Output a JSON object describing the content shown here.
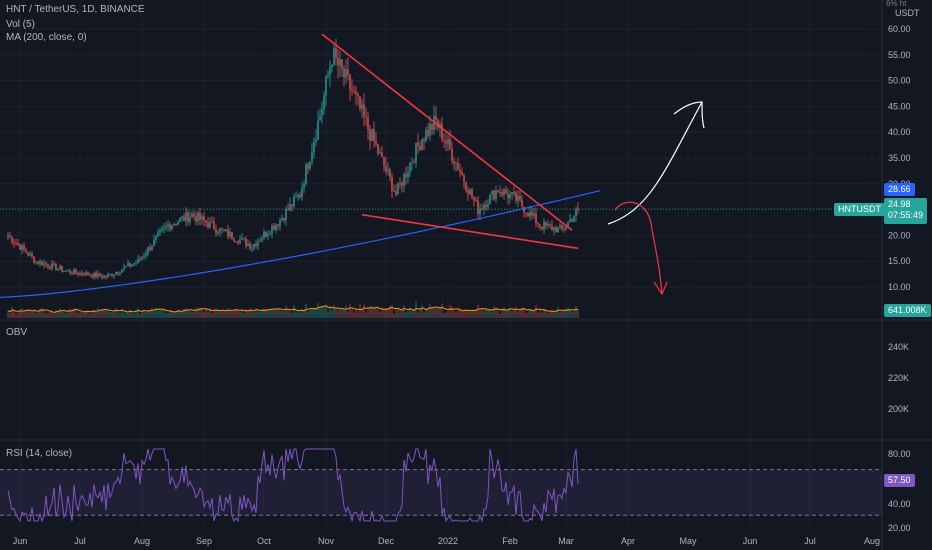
{
  "header": {
    "symbol_line": "HNT / TetherUS, 1D, BINANCE",
    "vol_label": "Vol (5)",
    "ma_label": "MA (200, close, 0)",
    "currency": "USDT",
    "scale_top": "6% ht"
  },
  "obv": {
    "label": "OBV",
    "ticks": [
      "240K",
      "220K",
      "200K"
    ]
  },
  "rsi": {
    "label": "RSI (14, close)",
    "ticks": [
      "80.00",
      "57.50",
      "40.00",
      "20.00"
    ],
    "value_tag": "57.50"
  },
  "price_tags": {
    "ma_value": "28.66",
    "symbol": "HNTUSDT",
    "last_price": "24.98",
    "countdown": "07:55:49",
    "volume": "641.008K"
  },
  "colors": {
    "background": "#131722",
    "up": "#26a69a",
    "down": "#ef5350",
    "ma": "#2962ff",
    "trendline": "#f23645",
    "rsi": "#7e57c2",
    "volume_ma": "#ff9800"
  },
  "chart_data": [
    {
      "type": "candlestick",
      "title": "HNT / TetherUS, 1D, BINANCE",
      "ylim": [
        6,
        61
      ],
      "y_ticks": [
        "60.00",
        "55.00",
        "50.00",
        "45.00",
        "40.00",
        "35.00",
        "30.00",
        "25.00",
        "20.00",
        "15.00",
        "10.00"
      ],
      "x_ticks": [
        "Jun",
        "Jul",
        "Aug",
        "Sep",
        "Oct",
        "Nov",
        "Dec",
        "2022",
        "Feb",
        "Mar",
        "Apr",
        "May",
        "Jun",
        "Jul",
        "Aug"
      ],
      "price_keyframes": [
        {
          "date": "2021-06-01",
          "close": 20
        },
        {
          "date": "2021-06-15",
          "close": 15
        },
        {
          "date": "2021-07-01",
          "close": 13
        },
        {
          "date": "2021-07-20",
          "close": 12
        },
        {
          "date": "2021-08-05",
          "close": 15
        },
        {
          "date": "2021-08-20",
          "close": 22
        },
        {
          "date": "2021-09-01",
          "close": 24
        },
        {
          "date": "2021-09-15",
          "close": 21
        },
        {
          "date": "2021-10-01",
          "close": 18
        },
        {
          "date": "2021-10-15",
          "close": 23
        },
        {
          "date": "2021-10-25",
          "close": 28
        },
        {
          "date": "2021-11-05",
          "close": 45
        },
        {
          "date": "2021-11-10",
          "close": 55
        },
        {
          "date": "2021-11-20",
          "close": 48
        },
        {
          "date": "2021-12-01",
          "close": 38
        },
        {
          "date": "2021-12-12",
          "close": 28
        },
        {
          "date": "2021-12-25",
          "close": 39
        },
        {
          "date": "2022-01-01",
          "close": 42
        },
        {
          "date": "2022-01-10",
          "close": 35
        },
        {
          "date": "2022-01-22",
          "close": 25
        },
        {
          "date": "2022-02-01",
          "close": 29
        },
        {
          "date": "2022-02-10",
          "close": 27
        },
        {
          "date": "2022-02-22",
          "close": 22
        },
        {
          "date": "2022-03-05",
          "close": 21
        },
        {
          "date": "2022-03-13",
          "close": 24.98
        }
      ],
      "ma200": {
        "name": "MA (200, close, 0)",
        "start": 8,
        "end": 28.66
      },
      "trendlines": [
        {
          "from": {
            "date": "2021-11-05",
            "value": 59
          },
          "to": {
            "date": "2022-03-10",
            "value": 21
          }
        },
        {
          "from": {
            "date": "2021-11-25",
            "value": 24
          },
          "to": {
            "date": "2022-03-13",
            "value": 17.5
          }
        }
      ],
      "volume_last": "641.008K"
    },
    {
      "type": "line",
      "title": "OBV",
      "y_ticks": [
        "240K",
        "220K",
        "200K"
      ]
    },
    {
      "type": "line",
      "title": "RSI (14, close)",
      "ylim": [
        18,
        95
      ],
      "bands": [
        70,
        30
      ],
      "y_ticks": [
        "80.00",
        "57.50",
        "40.00",
        "20.00"
      ],
      "last": 57.5
    }
  ]
}
